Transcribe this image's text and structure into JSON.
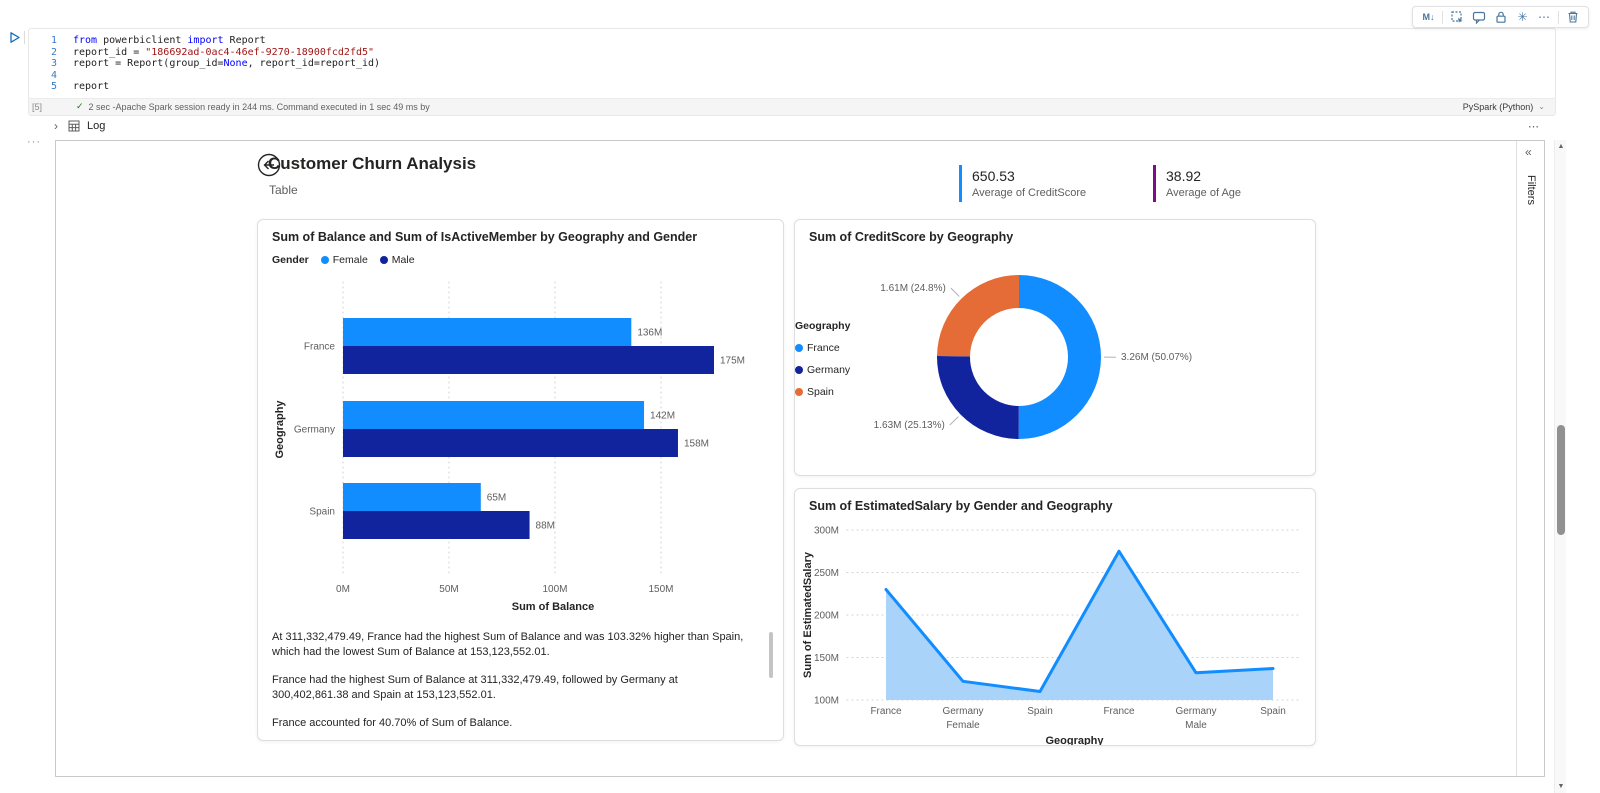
{
  "notebook": {
    "toolbar": {
      "markdown_label": "M↓"
    },
    "cell": {
      "execution_count": "[5]",
      "status_text": "2 sec -Apache Spark session ready in 244 ms. Command executed in 1 sec 49 ms by",
      "kernel": "PySpark (Python)",
      "lines": [
        {
          "num": "1",
          "tokens": [
            [
              "kw",
              "from"
            ],
            [
              "pl",
              " powerbiclient "
            ],
            [
              "kw",
              "import"
            ],
            [
              "pl",
              " Report"
            ]
          ]
        },
        {
          "num": "2",
          "tokens": [
            [
              "pl",
              "report_id = "
            ],
            [
              "str",
              "\"186692ad-0ac4-46ef-9270-18900fcd2fd5\""
            ]
          ]
        },
        {
          "num": "3",
          "tokens": [
            [
              "pl",
              "report = Report(group_id="
            ],
            [
              "kw",
              "None"
            ],
            [
              "pl",
              ", report_id=report_id)"
            ]
          ]
        },
        {
          "num": "4",
          "tokens": []
        },
        {
          "num": "5",
          "tokens": [
            [
              "pl",
              "report"
            ]
          ]
        }
      ]
    },
    "log_label": "Log",
    "log_more": "⋯",
    "drag_handle": "···"
  },
  "report": {
    "title": "Customer Churn Analysis",
    "subtitle": "Table",
    "kpis": [
      {
        "value": "650.53",
        "label": "Average of CreditScore",
        "color": "#118DFF"
      },
      {
        "value": "38.92",
        "label": "Average of Age",
        "color": "#7D0E86"
      }
    ],
    "filters_label": "Filters",
    "narrative": [
      "At 311,332,479.49, France had the highest Sum of Balance and was 103.32% higher than Spain, which had the lowest Sum of Balance at 153,123,552.01.",
      "France had the highest Sum of Balance at 311,332,479.49, followed by Germany at 300,402,861.38 and Spain at 153,123,552.01.",
      "France accounted for 40.70% of Sum of Balance."
    ]
  },
  "chart_data": [
    {
      "type": "bar",
      "orientation": "horizontal",
      "title": "Sum of Balance and Sum of IsActiveMember by Geography and Gender",
      "legend_title": "Gender",
      "categories": [
        "France",
        "Germany",
        "Spain"
      ],
      "series": [
        {
          "name": "Female",
          "color": "#118DFF",
          "values": [
            136,
            142,
            65
          ],
          "labels": [
            "136M",
            "142M",
            "65M"
          ]
        },
        {
          "name": "Male",
          "color": "#12239E",
          "values": [
            175,
            158,
            88
          ],
          "labels": [
            "175M",
            "158M",
            "88M"
          ]
        }
      ],
      "xlabel": "Sum of Balance",
      "ylabel": "Geography",
      "x_ticks": [
        "0M",
        "50M",
        "100M",
        "150M"
      ],
      "x_tick_values": [
        0,
        50,
        100,
        150
      ],
      "xlim": [
        0,
        175
      ],
      "grid": true
    },
    {
      "type": "donut",
      "title": "Sum of CreditScore by Geography",
      "legend_title": "Geography",
      "legend_position": "right",
      "slices": [
        {
          "name": "France",
          "color": "#118DFF",
          "value": 3.26,
          "pct": 50.07,
          "label": "3.26M (50.07%)"
        },
        {
          "name": "Germany",
          "color": "#12239E",
          "value": 1.63,
          "pct": 25.13,
          "label": "1.63M (25.13%)"
        },
        {
          "name": "Spain",
          "color": "#E66C37",
          "value": 1.61,
          "pct": 24.8,
          "label": "1.61M (24.8%)"
        }
      ]
    },
    {
      "type": "area",
      "title": "Sum of EstimatedSalary by Gender and Geography",
      "x_categories": [
        "France",
        "Germany",
        "Spain",
        "France",
        "Germany",
        "Spain"
      ],
      "group_labels": [
        {
          "label": "Female",
          "index": 1
        },
        {
          "label": "Male",
          "index": 4
        }
      ],
      "values": [
        230,
        122,
        110,
        275,
        132,
        137
      ],
      "y_ticks": [
        "300M",
        "250M",
        "200M",
        "150M",
        "100M"
      ],
      "y_tick_values": [
        300,
        250,
        200,
        150,
        100
      ],
      "ylim": [
        100,
        300
      ],
      "xlabel": "Geography",
      "ylabel": "Sum of EstimatedSalary",
      "color": "#118DFF",
      "fill": "#A9D3F9",
      "grid": true
    }
  ]
}
